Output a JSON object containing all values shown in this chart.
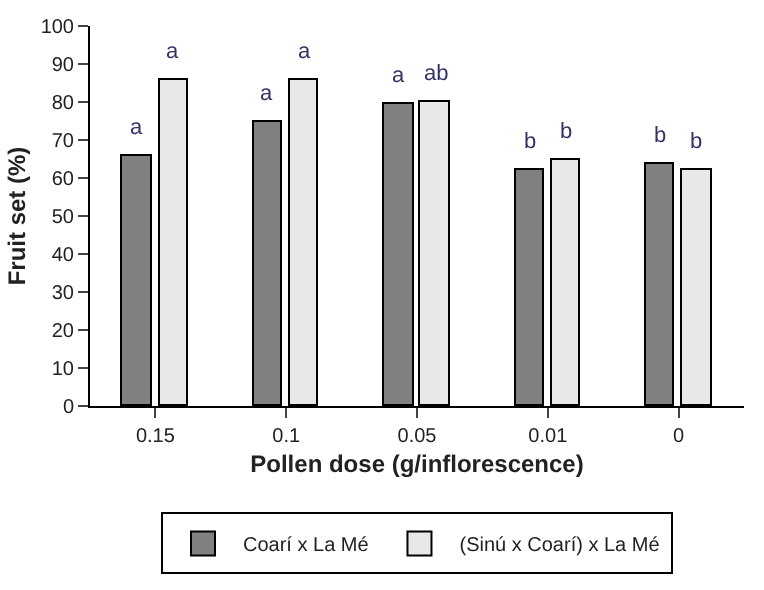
{
  "chart_data": {
    "type": "bar",
    "xlabel": "Pollen dose (g/inflorescence)",
    "ylabel": "Fruit set (%)",
    "categories": [
      "0.15",
      "0.1",
      "0.05",
      "0.01",
      "0"
    ],
    "series": [
      {
        "name": "Coarí x La Mé",
        "color": "#808080",
        "values": [
          66,
          75,
          79.5,
          62,
          63.5
        ]
      },
      {
        "name": "(Sinú x Coarí) x La Mé",
        "color": "#e8e8e8",
        "values": [
          86,
          86,
          80,
          65,
          62
        ]
      }
    ],
    "annotations": [
      {
        "text": "a",
        "x": "0.15",
        "y": 66
      },
      {
        "text": "a",
        "x": "0.15",
        "y": 86
      },
      {
        "text": "a",
        "x": "0.1",
        "y": 75
      },
      {
        "text": "a",
        "x": "0.1",
        "y": 86
      },
      {
        "text": "a",
        "x": "0.05",
        "y": 79.5
      },
      {
        "text": "ab",
        "x": "0.05",
        "y": 80
      },
      {
        "text": "b",
        "x": "0.01",
        "y": 62
      },
      {
        "text": "b",
        "x": "0.01",
        "y": 65
      },
      {
        "text": "b",
        "x": "0",
        "y": 63.5
      },
      {
        "text": "b",
        "x": "0",
        "y": 62
      }
    ],
    "ylim": [
      0,
      100
    ],
    "yticks": [
      0,
      10,
      20,
      30,
      40,
      50,
      60,
      70,
      80,
      90,
      100
    ],
    "legend": "bottom"
  }
}
